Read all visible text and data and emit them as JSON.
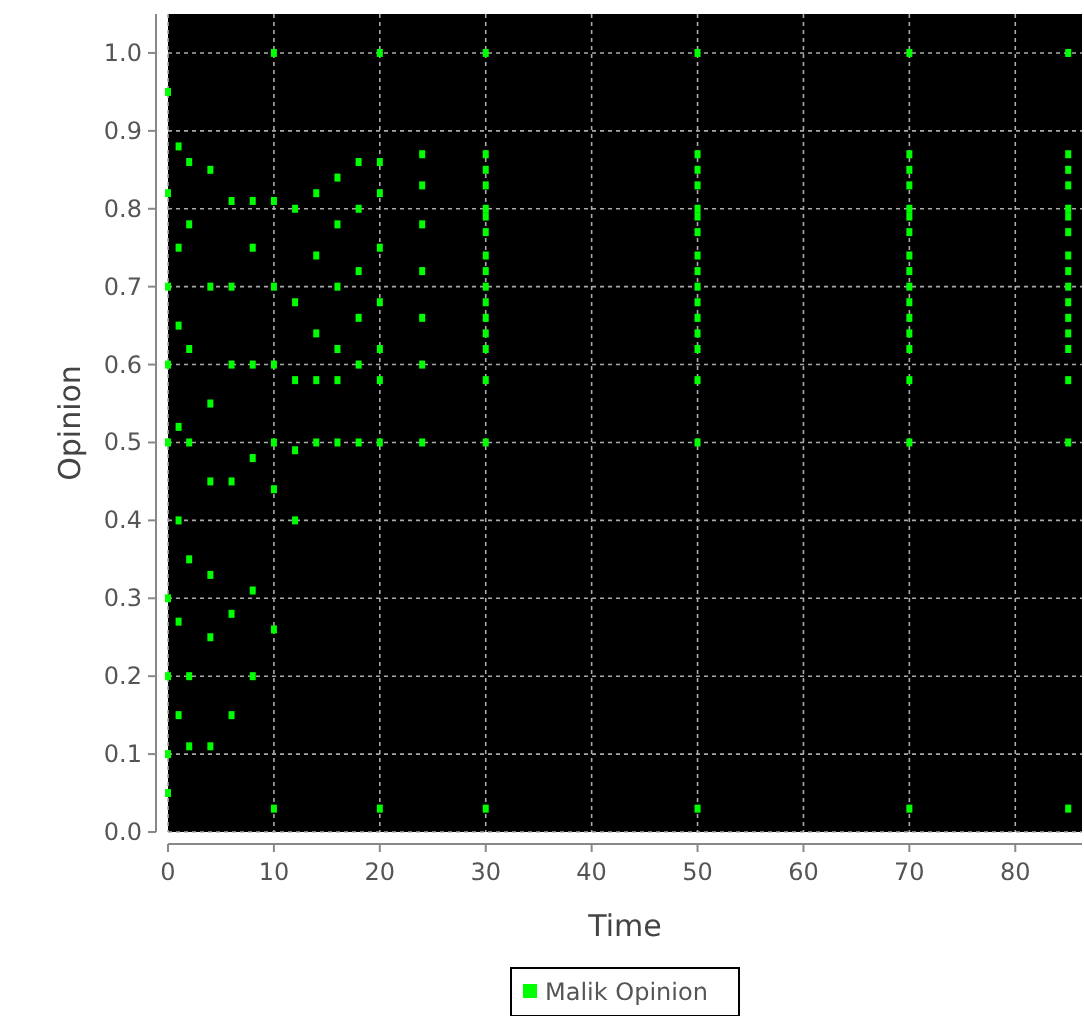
{
  "chart_data": {
    "type": "scatter",
    "xlabel": "Time",
    "ylabel": "Opinion",
    "xlim": [
      0,
      86.3
    ],
    "ylim": [
      0,
      1.05
    ],
    "xticks": [
      0,
      10,
      20,
      30,
      40,
      50,
      60,
      70,
      80
    ],
    "yticks": [
      {
        "value": 0,
        "label": "0.0"
      },
      0.1,
      0.2,
      0.3,
      0.4,
      0.5,
      0.6,
      0.7,
      0.8,
      0.9,
      {
        "value": 1,
        "label": "1.0"
      }
    ],
    "grid": true,
    "legend": "bottom",
    "marker": "square",
    "series": [
      {
        "name": "Malik Opinion",
        "color": "#00ff00",
        "x": [
          0,
          0,
          0,
          0,
          0,
          0,
          0,
          0,
          0,
          1,
          1,
          1,
          1,
          1,
          1,
          1,
          2,
          2,
          2,
          2,
          2,
          2,
          2,
          4,
          4,
          4,
          4,
          4,
          4,
          4,
          6,
          6,
          6,
          6,
          6,
          6,
          8,
          8,
          8,
          8,
          8,
          8,
          10,
          10,
          10,
          10,
          10,
          10,
          12,
          12,
          12,
          12,
          12,
          14,
          14,
          14,
          14,
          14,
          16,
          16,
          16,
          16,
          16,
          16,
          18,
          18,
          18,
          18,
          18,
          18,
          20,
          20,
          20,
          20,
          20,
          20,
          20,
          24,
          24,
          24,
          24,
          24,
          24,
          24,
          10,
          10,
          20,
          20,
          30,
          30,
          30,
          30,
          30,
          30,
          30,
          30,
          30,
          30,
          30,
          30,
          30,
          30,
          30,
          30,
          30,
          50,
          50,
          50,
          50,
          50,
          50,
          50,
          50,
          50,
          50,
          50,
          50,
          50,
          50,
          50,
          50,
          50,
          70,
          70,
          70,
          70,
          70,
          70,
          70,
          70,
          70,
          70,
          70,
          70,
          70,
          70,
          70,
          70,
          70,
          85,
          85,
          85,
          85,
          85,
          85,
          85,
          85,
          85,
          85,
          85,
          85,
          85,
          85,
          85,
          85,
          85
        ],
        "values": [
          0.95,
          0.82,
          0.7,
          0.6,
          0.5,
          0.3,
          0.2,
          0.1,
          0.05,
          0.88,
          0.75,
          0.65,
          0.52,
          0.4,
          0.27,
          0.15,
          0.86,
          0.78,
          0.62,
          0.5,
          0.35,
          0.2,
          0.11,
          0.85,
          0.7,
          0.55,
          0.45,
          0.33,
          0.25,
          0.11,
          0.81,
          0.7,
          0.6,
          0.45,
          0.28,
          0.15,
          0.81,
          0.75,
          0.6,
          0.48,
          0.31,
          0.2,
          0.81,
          0.7,
          0.6,
          0.5,
          0.44,
          0.26,
          0.8,
          0.68,
          0.58,
          0.49,
          0.4,
          0.82,
          0.74,
          0.64,
          0.58,
          0.5,
          0.84,
          0.78,
          0.7,
          0.62,
          0.58,
          0.5,
          0.86,
          0.8,
          0.72,
          0.66,
          0.6,
          0.5,
          0.86,
          0.82,
          0.75,
          0.68,
          0.62,
          0.58,
          0.5,
          0.87,
          0.83,
          0.78,
          0.72,
          0.66,
          0.6,
          0.5,
          1.0,
          0.03,
          1.0,
          0.03,
          1.0,
          0.87,
          0.85,
          0.83,
          0.8,
          0.79,
          0.77,
          0.74,
          0.72,
          0.7,
          0.68,
          0.66,
          0.64,
          0.62,
          0.58,
          0.5,
          0.03,
          1.0,
          0.87,
          0.85,
          0.83,
          0.8,
          0.79,
          0.77,
          0.74,
          0.72,
          0.7,
          0.68,
          0.66,
          0.64,
          0.62,
          0.58,
          0.5,
          0.03,
          1.0,
          0.87,
          0.85,
          0.83,
          0.8,
          0.79,
          0.77,
          0.74,
          0.72,
          0.7,
          0.68,
          0.66,
          0.64,
          0.62,
          0.58,
          0.5,
          0.03,
          1.0,
          0.87,
          0.85,
          0.83,
          0.8,
          0.79,
          0.77,
          0.74,
          0.72,
          0.7,
          0.68,
          0.66,
          0.64,
          0.62,
          0.58,
          0.5,
          0.03
        ]
      }
    ]
  }
}
